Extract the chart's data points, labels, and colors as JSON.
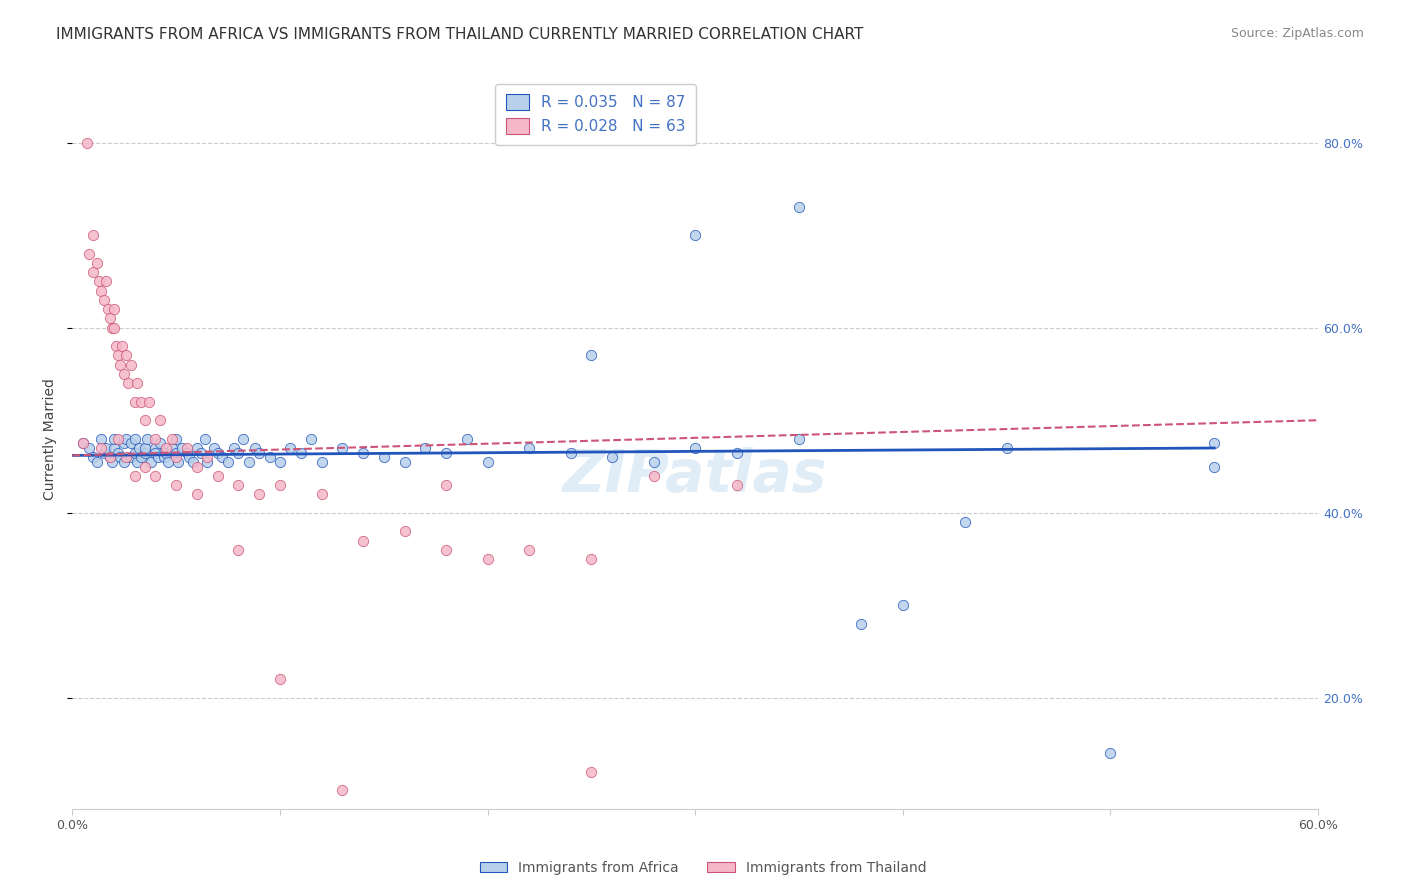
{
  "title": "IMMIGRANTS FROM AFRICA VS IMMIGRANTS FROM THAILAND CURRENTLY MARRIED CORRELATION CHART",
  "source": "Source: ZipAtlas.com",
  "ylabel": "Currently Married",
  "legend_labels": [
    "Immigrants from Africa",
    "Immigrants from Thailand"
  ],
  "legend_R": [
    0.035,
    0.028
  ],
  "legend_N": [
    87,
    63
  ],
  "blue_color": "#b8d0ea",
  "pink_color": "#f5b8c8",
  "line_blue": "#2255bb",
  "line_pink": "#cc5577",
  "xmin": 0.0,
  "xmax": 0.6,
  "ymin": 0.08,
  "ymax": 0.88,
  "right_yticks": [
    0.2,
    0.4,
    0.6,
    0.8
  ],
  "right_yticklabels": [
    "20.0%",
    "40.0%",
    "60.0%",
    "80.0%"
  ],
  "xticks": [
    0.0,
    0.1,
    0.2,
    0.3,
    0.4,
    0.5,
    0.6
  ],
  "xticklabels": [
    "0.0%",
    "",
    "",
    "",
    "",
    "",
    "60.0%"
  ],
  "blue_scatter_x": [
    0.005,
    0.008,
    0.01,
    0.012,
    0.014,
    0.015,
    0.016,
    0.018,
    0.019,
    0.02,
    0.02,
    0.022,
    0.023,
    0.025,
    0.025,
    0.026,
    0.028,
    0.028,
    0.03,
    0.03,
    0.031,
    0.032,
    0.033,
    0.035,
    0.035,
    0.036,
    0.038,
    0.04,
    0.04,
    0.041,
    0.042,
    0.044,
    0.045,
    0.046,
    0.048,
    0.05,
    0.05,
    0.051,
    0.053,
    0.055,
    0.056,
    0.058,
    0.06,
    0.062,
    0.064,
    0.065,
    0.068,
    0.07,
    0.072,
    0.075,
    0.078,
    0.08,
    0.082,
    0.085,
    0.088,
    0.09,
    0.095,
    0.1,
    0.105,
    0.11,
    0.115,
    0.12,
    0.13,
    0.14,
    0.15,
    0.16,
    0.17,
    0.18,
    0.19,
    0.2,
    0.22,
    0.24,
    0.26,
    0.28,
    0.3,
    0.32,
    0.35,
    0.38,
    0.4,
    0.43,
    0.25,
    0.3,
    0.35,
    0.45,
    0.5,
    0.55,
    0.55
  ],
  "blue_scatter_y": [
    0.475,
    0.47,
    0.46,
    0.455,
    0.48,
    0.465,
    0.47,
    0.46,
    0.455,
    0.47,
    0.48,
    0.465,
    0.46,
    0.455,
    0.475,
    0.48,
    0.46,
    0.475,
    0.465,
    0.48,
    0.455,
    0.47,
    0.46,
    0.465,
    0.47,
    0.48,
    0.455,
    0.47,
    0.465,
    0.46,
    0.475,
    0.46,
    0.465,
    0.455,
    0.47,
    0.465,
    0.48,
    0.455,
    0.47,
    0.465,
    0.46,
    0.455,
    0.47,
    0.465,
    0.48,
    0.455,
    0.47,
    0.465,
    0.46,
    0.455,
    0.47,
    0.465,
    0.48,
    0.455,
    0.47,
    0.465,
    0.46,
    0.455,
    0.47,
    0.465,
    0.48,
    0.455,
    0.47,
    0.465,
    0.46,
    0.455,
    0.47,
    0.465,
    0.48,
    0.455,
    0.47,
    0.465,
    0.46,
    0.455,
    0.47,
    0.465,
    0.48,
    0.28,
    0.3,
    0.39,
    0.57,
    0.7,
    0.73,
    0.47,
    0.14,
    0.45,
    0.475
  ],
  "pink_scatter_x": [
    0.005,
    0.007,
    0.008,
    0.01,
    0.01,
    0.012,
    0.013,
    0.014,
    0.015,
    0.016,
    0.017,
    0.018,
    0.019,
    0.02,
    0.02,
    0.021,
    0.022,
    0.023,
    0.024,
    0.025,
    0.026,
    0.027,
    0.028,
    0.03,
    0.031,
    0.033,
    0.035,
    0.037,
    0.04,
    0.042,
    0.045,
    0.048,
    0.05,
    0.055,
    0.06,
    0.065,
    0.07,
    0.08,
    0.09,
    0.1,
    0.12,
    0.14,
    0.16,
    0.18,
    0.2,
    0.22,
    0.25,
    0.28,
    0.32,
    0.014,
    0.018,
    0.022,
    0.026,
    0.03,
    0.035,
    0.04,
    0.05,
    0.06,
    0.08,
    0.1,
    0.13,
    0.18,
    0.25
  ],
  "pink_scatter_y": [
    0.475,
    0.8,
    0.68,
    0.7,
    0.66,
    0.67,
    0.65,
    0.64,
    0.63,
    0.65,
    0.62,
    0.61,
    0.6,
    0.6,
    0.62,
    0.58,
    0.57,
    0.56,
    0.58,
    0.55,
    0.57,
    0.54,
    0.56,
    0.52,
    0.54,
    0.52,
    0.5,
    0.52,
    0.48,
    0.5,
    0.47,
    0.48,
    0.46,
    0.47,
    0.45,
    0.46,
    0.44,
    0.43,
    0.42,
    0.43,
    0.42,
    0.37,
    0.38,
    0.36,
    0.35,
    0.36,
    0.35,
    0.44,
    0.43,
    0.47,
    0.46,
    0.48,
    0.46,
    0.44,
    0.45,
    0.44,
    0.43,
    0.42,
    0.36,
    0.22,
    0.1,
    0.43,
    0.12
  ],
  "blue_line_x": [
    0.0,
    0.55
  ],
  "blue_line_y": [
    0.462,
    0.47
  ],
  "pink_line_x": [
    0.0,
    0.6
  ],
  "pink_line_y": [
    0.462,
    0.5
  ],
  "watermark": "ZIPatlas",
  "title_fontsize": 11,
  "axis_fontsize": 10,
  "tick_fontsize": 9,
  "legend_fontsize": 11
}
